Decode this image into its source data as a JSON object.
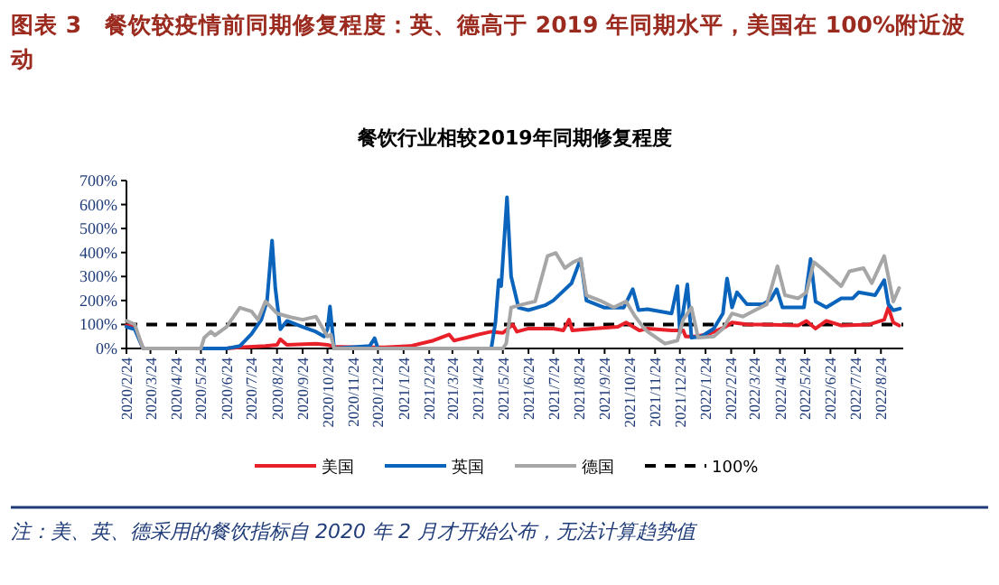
{
  "chart_data": {
    "type": "line",
    "title": "图表 3　餐饮较疫情前同期修复程度：英、德高于 2019 年同期水平，美国在 100%附近波动",
    "subtitle": "餐饮行业相较2019年同期修复程度",
    "annotations": [
      "注：美、英、德采用的餐饮指标自 2020 年 2 月才开始公布，无法计算趋势值"
    ],
    "xlim": [
      "2020-02-24",
      "2022-09-20"
    ],
    "xticks": [
      {
        "value": "2020-02-24",
        "label": "2020/2/24"
      },
      {
        "value": "2020-03-24",
        "label": "2020/3/24"
      },
      {
        "value": "2020-04-24",
        "label": "2020/4/24"
      },
      {
        "value": "2020-05-24",
        "label": "2020/5/24"
      },
      {
        "value": "2020-06-24",
        "label": "2020/6/24"
      },
      {
        "value": "2020-07-24",
        "label": "2020/7/24"
      },
      {
        "value": "2020-08-24",
        "label": "2020/8/24"
      },
      {
        "value": "2020-09-24",
        "label": "2020/9/24"
      },
      {
        "value": "2020-10-24",
        "label": "2020/10/24"
      },
      {
        "value": "2020-11-24",
        "label": "2020/11/24"
      },
      {
        "value": "2020-12-24",
        "label": "2020/12/24"
      },
      {
        "value": "2021-01-24",
        "label": "2021/1/24"
      },
      {
        "value": "2021-02-24",
        "label": "2021/2/24"
      },
      {
        "value": "2021-03-24",
        "label": "2021/3/24"
      },
      {
        "value": "2021-04-24",
        "label": "2021/4/24"
      },
      {
        "value": "2021-05-24",
        "label": "2021/5/24"
      },
      {
        "value": "2021-06-24",
        "label": "2021/6/24"
      },
      {
        "value": "2021-07-24",
        "label": "2021/7/24"
      },
      {
        "value": "2021-08-24",
        "label": "2021/8/24"
      },
      {
        "value": "2021-09-24",
        "label": "2021/9/24"
      },
      {
        "value": "2021-10-24",
        "label": "2021/10/24"
      },
      {
        "value": "2021-11-24",
        "label": "2021/11/24"
      },
      {
        "value": "2021-12-24",
        "label": "2021/12/24"
      },
      {
        "value": "2022-01-24",
        "label": "2022/1/24"
      },
      {
        "value": "2022-02-24",
        "label": "2022/2/24"
      },
      {
        "value": "2022-03-24",
        "label": "2022/3/24"
      },
      {
        "value": "2022-04-24",
        "label": "2022/4/24"
      },
      {
        "value": "2022-05-24",
        "label": "2022/5/24"
      },
      {
        "value": "2022-06-24",
        "label": "2022/6/24"
      },
      {
        "value": "2022-07-24",
        "label": "2022/7/24"
      },
      {
        "value": "2022-08-24",
        "label": "2022/8/24"
      }
    ],
    "ylim": [
      0,
      700
    ],
    "yticks": [
      {
        "value": 0,
        "label": "0%"
      },
      {
        "value": 100,
        "label": "100%"
      },
      {
        "value": 200,
        "label": "200%"
      },
      {
        "value": 300,
        "label": "300%"
      },
      {
        "value": 400,
        "label": "400%"
      },
      {
        "value": 500,
        "label": "500%"
      },
      {
        "value": 600,
        "label": "600%"
      },
      {
        "value": 700,
        "label": "700%"
      }
    ],
    "legend": "bottom",
    "line_style": "solid",
    "ref_lines": [
      {
        "axis": "y",
        "value": 100,
        "label": "100%",
        "color": "#000000",
        "line_style": "dashed"
      }
    ],
    "series": [
      {
        "name": "美国",
        "color": "#e8202a",
        "x": [
          "2020-02-24",
          "2020-03-05",
          "2020-03-15",
          "2020-06-24",
          "2020-07-10",
          "2020-08-10",
          "2020-08-24",
          "2020-08-28",
          "2020-09-05",
          "2020-10-10",
          "2020-10-24",
          "2020-11-01",
          "2020-12-01",
          "2021-01-01",
          "2021-02-01",
          "2021-03-01",
          "2021-03-20",
          "2021-03-26",
          "2021-04-10",
          "2021-04-24",
          "2021-05-10",
          "2021-05-24",
          "2021-06-05",
          "2021-06-10",
          "2021-06-24",
          "2021-07-24",
          "2021-08-05",
          "2021-08-12",
          "2021-08-16",
          "2021-09-10",
          "2021-10-10",
          "2021-10-20",
          "2021-11-05",
          "2021-11-15",
          "2021-12-14",
          "2021-12-28",
          "2021-12-31",
          "2022-01-11",
          "2022-01-26",
          "2022-02-17",
          "2022-02-25",
          "2022-03-17",
          "2022-04-06",
          "2022-05-16",
          "2022-05-26",
          "2022-06-06",
          "2022-06-19",
          "2022-07-07",
          "2022-08-10",
          "2022-08-28",
          "2022-09-02",
          "2022-09-08",
          "2022-09-15"
        ],
        "values": [
          96,
          90,
          0,
          0,
          5,
          10,
          15,
          38,
          15,
          20,
          15,
          8,
          5,
          5,
          10,
          33,
          58,
          33,
          45,
          58,
          70,
          65,
          100,
          70,
          83,
          83,
          75,
          120,
          75,
          83,
          90,
          108,
          75,
          83,
          75,
          75,
          50,
          50,
          58,
          90,
          108,
          100,
          100,
          96,
          115,
          83,
          115,
          96,
          100,
          120,
          171,
          108,
          96
        ]
      },
      {
        "name": "英国",
        "color": "#0a64bc",
        "x": [
          "2020-02-24",
          "2020-03-05",
          "2020-03-15",
          "2020-06-24",
          "2020-07-10",
          "2020-07-24",
          "2020-08-05",
          "2020-08-12",
          "2020-08-18",
          "2020-08-22",
          "2020-08-28",
          "2020-09-05",
          "2020-09-24",
          "2020-10-10",
          "2020-10-20",
          "2020-10-24",
          "2020-10-27",
          "2020-11-01",
          "2020-12-14",
          "2020-12-20",
          "2020-12-24",
          "2021-05-10",
          "2021-05-15",
          "2021-05-19",
          "2021-05-22",
          "2021-05-29",
          "2021-06-03",
          "2021-06-12",
          "2021-06-24",
          "2021-07-14",
          "2021-07-24",
          "2021-08-15",
          "2021-08-26",
          "2021-09-02",
          "2021-09-24",
          "2021-10-17",
          "2021-10-28",
          "2021-11-04",
          "2021-11-15",
          "2021-12-14",
          "2021-12-21",
          "2021-12-24",
          "2022-01-02",
          "2022-01-07",
          "2022-01-19",
          "2022-02-03",
          "2022-02-14",
          "2022-02-19",
          "2022-02-25",
          "2022-03-03",
          "2022-03-15",
          "2022-04-03",
          "2022-04-13",
          "2022-04-20",
          "2022-04-27",
          "2022-05-23",
          "2022-05-31",
          "2022-06-06",
          "2022-06-19",
          "2022-07-07",
          "2022-07-21",
          "2022-07-28",
          "2022-08-17",
          "2022-08-28",
          "2022-09-02",
          "2022-09-08",
          "2022-09-16"
        ],
        "values": [
          90,
          80,
          0,
          0,
          10,
          60,
          120,
          200,
          450,
          250,
          80,
          115,
          90,
          70,
          50,
          80,
          175,
          0,
          10,
          43,
          0,
          0,
          108,
          285,
          260,
          630,
          300,
          170,
          160,
          180,
          200,
          272,
          373,
          200,
          170,
          170,
          247,
          160,
          164,
          146,
          260,
          65,
          267,
          45,
          50,
          83,
          146,
          292,
          171,
          234,
          184,
          184,
          205,
          247,
          171,
          171,
          373,
          196,
          171,
          209,
          209,
          234,
          222,
          285,
          184,
          159,
          166
        ]
      },
      {
        "name": "德国",
        "color": "#a6a6a6",
        "x": [
          "2020-02-24",
          "2020-03-05",
          "2020-03-15",
          "2020-05-24",
          "2020-05-28",
          "2020-06-05",
          "2020-06-10",
          "2020-06-24",
          "2020-07-10",
          "2020-07-24",
          "2020-08-01",
          "2020-08-10",
          "2020-08-24",
          "2020-09-10",
          "2020-09-24",
          "2020-10-10",
          "2020-10-24",
          "2020-10-28",
          "2020-11-01",
          "2021-05-24",
          "2021-05-28",
          "2021-06-03",
          "2021-06-17",
          "2021-07-02",
          "2021-07-17",
          "2021-07-27",
          "2021-08-07",
          "2021-08-17",
          "2021-08-26",
          "2021-09-02",
          "2021-09-21",
          "2021-10-05",
          "2021-10-20",
          "2021-10-31",
          "2021-11-11",
          "2021-11-15",
          "2021-12-06",
          "2021-12-21",
          "2021-12-28",
          "2022-01-07",
          "2022-01-15",
          "2022-02-03",
          "2022-02-14",
          "2022-02-25",
          "2022-03-10",
          "2022-03-24",
          "2022-04-08",
          "2022-04-21",
          "2022-04-30",
          "2022-05-16",
          "2022-05-26",
          "2022-06-04",
          "2022-06-13",
          "2022-07-07",
          "2022-07-17",
          "2022-08-03",
          "2022-08-13",
          "2022-08-28",
          "2022-09-08",
          "2022-09-15"
        ],
        "values": [
          115,
          100,
          0,
          0,
          45,
          70,
          55,
          90,
          170,
          155,
          120,
          196,
          146,
          130,
          120,
          133,
          50,
          58,
          0,
          0,
          20,
          171,
          184,
          196,
          385,
          398,
          335,
          360,
          373,
          222,
          196,
          171,
          196,
          133,
          83,
          70,
          20,
          33,
          120,
          171,
          45,
          50,
          83,
          146,
          133,
          158,
          184,
          343,
          222,
          209,
          234,
          360,
          335,
          260,
          322,
          335,
          272,
          385,
          196,
          252
        ]
      }
    ]
  }
}
